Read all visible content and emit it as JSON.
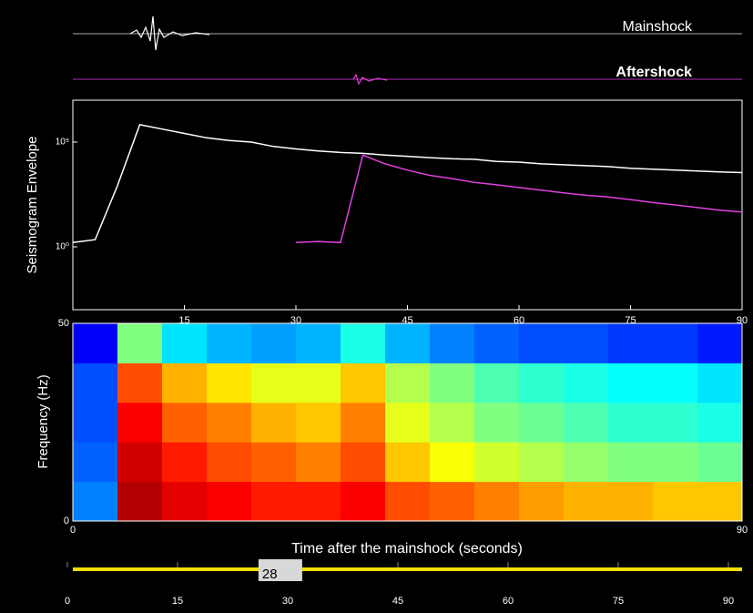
{
  "chart_data": [
    {
      "type": "line",
      "log_y": true,
      "ylabel": "Seismogram Envelope",
      "x": [
        0,
        3,
        6,
        9,
        12,
        15,
        18,
        21,
        24,
        27,
        30,
        33,
        36,
        39,
        42,
        45,
        48,
        51,
        54,
        57,
        60,
        63,
        66,
        69,
        72,
        75,
        78,
        81,
        84,
        87,
        90
      ],
      "series": [
        {
          "name": "Mainshock",
          "color": "#ffffff",
          "values": [
            1.6,
            2.2,
            830,
            680000,
            420000,
            260000,
            160000,
            120000,
            100000,
            62000,
            47000,
            38000,
            32000,
            29000,
            24000,
            21000,
            18000,
            16000,
            15000,
            12000,
            11000,
            9100,
            8300,
            7500,
            6800,
            5600,
            5100,
            4600,
            4200,
            3800,
            3500
          ]
        },
        {
          "name": "Aftershock",
          "color": "#e040e0",
          "values": [
            null,
            null,
            null,
            null,
            null,
            null,
            null,
            null,
            null,
            null,
            1.6,
            1.8,
            1.6,
            24000,
            9100,
            4600,
            2600,
            1800,
            1200,
            910,
            680,
            510,
            380,
            290,
            240,
            180,
            130,
            100,
            75,
            56,
            46
          ]
        }
      ],
      "xlim": [
        0,
        90
      ],
      "xticks": [
        15,
        30,
        45,
        60,
        75,
        90
      ],
      "ylim": [
        0.001,
        10000000
      ],
      "yticks": [
        {
          "value": 1,
          "label": "10⁰"
        },
        {
          "value": 100000,
          "label": "10⁵"
        }
      ]
    },
    {
      "type": "heatmap",
      "xlabel": "Time after the mainshock (seconds)",
      "ylabel": "Frequency (Hz)",
      "x_bins": [
        0,
        6,
        12,
        18,
        24,
        30,
        36,
        42,
        48,
        54,
        60,
        66,
        72,
        78,
        84,
        90
      ],
      "y_bins": [
        0,
        10,
        20,
        30,
        40,
        50
      ],
      "z": [
        [
          0.25,
          0.95,
          0.9,
          0.88,
          0.85,
          0.85,
          0.88,
          0.8,
          0.78,
          0.75,
          0.72,
          0.7,
          0.7,
          0.68,
          0.68
        ],
        [
          0.22,
          0.92,
          0.85,
          0.8,
          0.78,
          0.75,
          0.8,
          0.68,
          0.62,
          0.58,
          0.55,
          0.52,
          0.5,
          0.5,
          0.48
        ],
        [
          0.2,
          0.88,
          0.78,
          0.75,
          0.7,
          0.68,
          0.75,
          0.6,
          0.55,
          0.5,
          0.48,
          0.45,
          0.42,
          0.42,
          0.4
        ],
        [
          0.2,
          0.8,
          0.7,
          0.65,
          0.6,
          0.6,
          0.68,
          0.55,
          0.5,
          0.45,
          0.42,
          0.4,
          0.38,
          0.38,
          0.35
        ],
        [
          0.12,
          0.5,
          0.35,
          0.3,
          0.28,
          0.3,
          0.4,
          0.3,
          0.25,
          0.22,
          0.2,
          0.2,
          0.18,
          0.18,
          0.15
        ]
      ],
      "xlim": [
        0,
        90
      ],
      "xticks": [
        0,
        90
      ],
      "ylim": [
        0,
        50
      ],
      "yticks": [
        0,
        50
      ]
    }
  ],
  "player": {
    "min": 0,
    "max": 90,
    "value": 28,
    "ticks": [
      0,
      15,
      30,
      45,
      60,
      75,
      90
    ]
  }
}
